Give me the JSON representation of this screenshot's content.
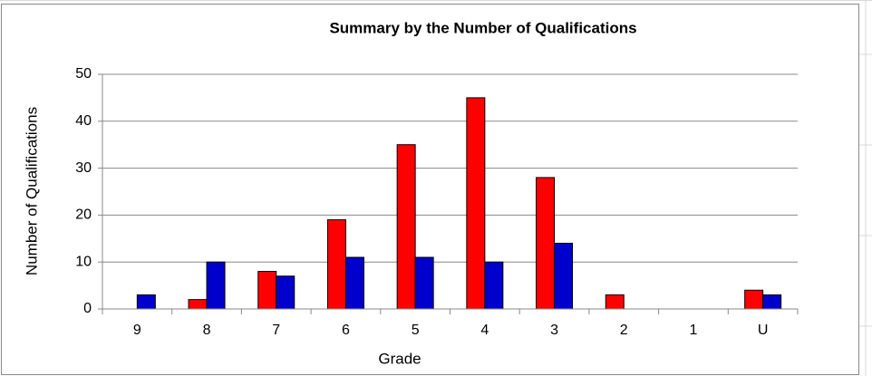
{
  "chart_data": {
    "type": "bar",
    "title": "Summary by the Number of Qualifications",
    "xlabel": "Grade",
    "ylabel": "Number of Qualifications",
    "categories": [
      "9",
      "8",
      "7",
      "6",
      "5",
      "4",
      "3",
      "2",
      "1",
      "U"
    ],
    "series": [
      {
        "color": "#ff0000",
        "values": [
          0,
          2,
          8,
          19,
          35,
          45,
          28,
          3,
          0,
          4
        ]
      },
      {
        "color": "#0000cc",
        "values": [
          3,
          10,
          7,
          11,
          11,
          10,
          14,
          0,
          0,
          3
        ]
      }
    ],
    "ylim": [
      0,
      50
    ],
    "yticks": [
      0,
      10,
      20,
      30,
      40,
      50
    ],
    "grid": true
  }
}
